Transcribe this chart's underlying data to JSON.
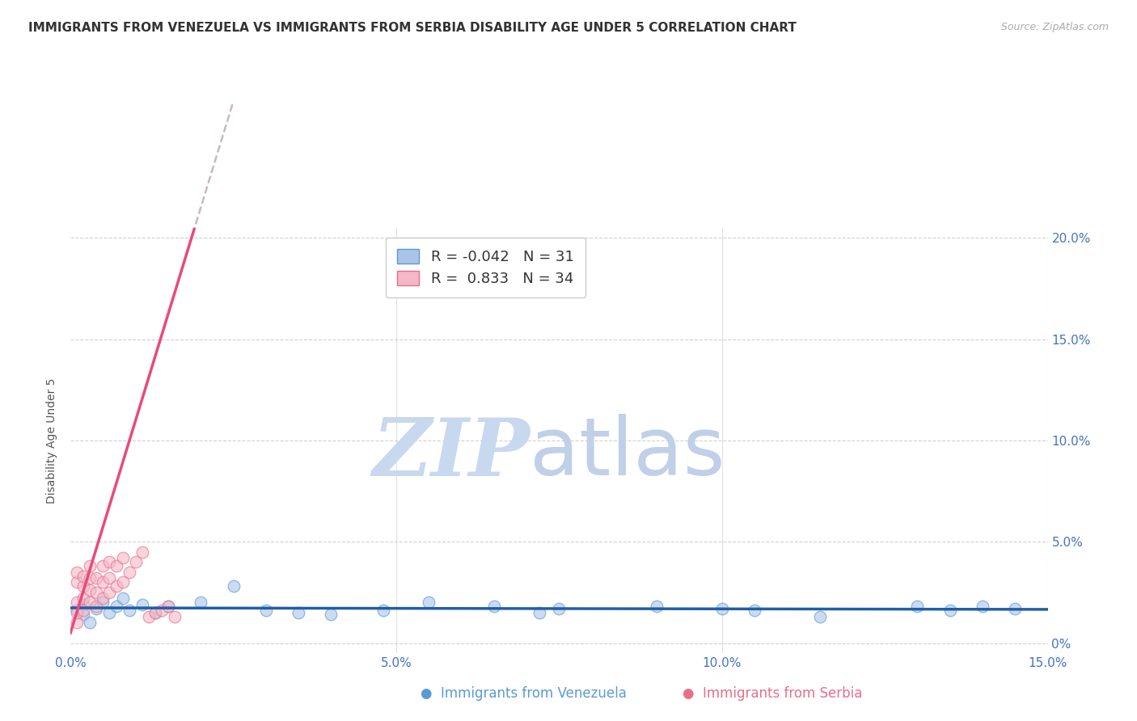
{
  "title": "IMMIGRANTS FROM VENEZUELA VS IMMIGRANTS FROM SERBIA DISABILITY AGE UNDER 5 CORRELATION CHART",
  "source": "Source: ZipAtlas.com",
  "ylabel": "Disability Age Under 5",
  "xlim": [
    0.0,
    0.15
  ],
  "ylim": [
    -0.005,
    0.205
  ],
  "xticks": [
    0.0,
    0.05,
    0.1,
    0.15
  ],
  "xtick_labels": [
    "0.0%",
    "5.0%",
    "10.0%",
    "15.0%"
  ],
  "yticks": [
    0.0,
    0.05,
    0.1,
    0.15,
    0.2
  ],
  "ytick_labels_right": [
    "0%",
    "5.0%",
    "10.0%",
    "15.0%",
    "20.0%"
  ],
  "title_fontsize": 11,
  "axis_label_fontsize": 10,
  "tick_fontsize": 11,
  "venezuela_fill": "#aac4e8",
  "venezuela_edge": "#5b9bd5",
  "serbia_fill": "#f4b8c8",
  "serbia_edge": "#e8708a",
  "trend_venezuela": "#1f5fa6",
  "trend_serbia": "#e84b7a",
  "trend_dashed": "#c8b8c0",
  "R_venezuela": -0.042,
  "N_venezuela": 31,
  "R_serbia": 0.833,
  "N_serbia": 34,
  "venezuela_x": [
    0.001,
    0.002,
    0.002,
    0.003,
    0.004,
    0.005,
    0.006,
    0.007,
    0.008,
    0.009,
    0.011,
    0.013,
    0.015,
    0.02,
    0.025,
    0.03,
    0.035,
    0.04,
    0.048,
    0.055,
    0.065,
    0.072,
    0.075,
    0.09,
    0.1,
    0.105,
    0.115,
    0.13,
    0.135,
    0.14,
    0.145
  ],
  "venezuela_y": [
    0.016,
    0.019,
    0.014,
    0.01,
    0.017,
    0.02,
    0.015,
    0.018,
    0.022,
    0.016,
    0.019,
    0.015,
    0.018,
    0.02,
    0.028,
    0.016,
    0.015,
    0.014,
    0.016,
    0.02,
    0.018,
    0.015,
    0.017,
    0.018,
    0.017,
    0.016,
    0.013,
    0.018,
    0.016,
    0.018,
    0.017
  ],
  "serbia_x": [
    0.001,
    0.001,
    0.001,
    0.001,
    0.001,
    0.002,
    0.002,
    0.002,
    0.002,
    0.003,
    0.003,
    0.003,
    0.003,
    0.004,
    0.004,
    0.004,
    0.005,
    0.005,
    0.005,
    0.006,
    0.006,
    0.006,
    0.007,
    0.007,
    0.008,
    0.008,
    0.009,
    0.01,
    0.011,
    0.012,
    0.013,
    0.014,
    0.015,
    0.016
  ],
  "serbia_y": [
    0.01,
    0.015,
    0.02,
    0.03,
    0.035,
    0.016,
    0.022,
    0.028,
    0.033,
    0.02,
    0.026,
    0.032,
    0.038,
    0.018,
    0.025,
    0.032,
    0.022,
    0.03,
    0.038,
    0.025,
    0.032,
    0.04,
    0.028,
    0.038,
    0.03,
    0.042,
    0.035,
    0.04,
    0.045,
    0.013,
    0.015,
    0.016,
    0.018,
    0.013
  ],
  "watermark_zip_color": "#c8d8ee",
  "watermark_atlas_color": "#c0d0e8",
  "dot_size": 110,
  "dot_alpha": 0.6,
  "background_color": "#ffffff",
  "grid_color": "#cccccc"
}
